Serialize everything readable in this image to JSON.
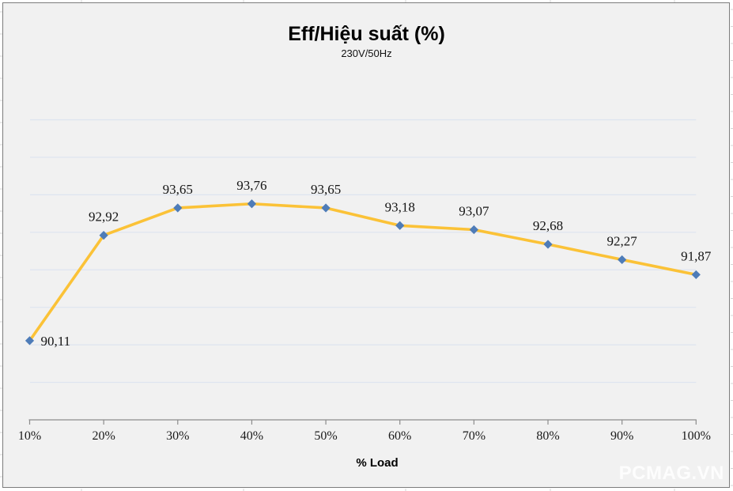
{
  "watermark_text": "PCMAG.VN",
  "chart_data": {
    "type": "line",
    "title": "Eff/Hiệu suất (%)",
    "subtitle": "230V/50Hz",
    "xlabel": "% Load",
    "ylabel": "",
    "categories": [
      "10%",
      "20%",
      "30%",
      "40%",
      "50%",
      "60%",
      "70%",
      "80%",
      "90%",
      "100%"
    ],
    "series": [
      {
        "name": "Eff/Hiệu suất",
        "values": [
          90.11,
          92.92,
          93.65,
          93.76,
          93.65,
          93.18,
          93.07,
          92.68,
          92.27,
          91.87
        ],
        "value_labels": [
          "90,11",
          "92,92",
          "93,65",
          "93,76",
          "93,65",
          "93,18",
          "93,07",
          "92,68",
          "92,27",
          "91,87"
        ]
      }
    ],
    "ylim": [
      88,
      96
    ],
    "y_major_unit": 1,
    "grid": "horizontal-on",
    "y_axis_labels_visible": false,
    "legend": "none",
    "colors": {
      "line": "#fbc237",
      "marker": "#4e7cb8",
      "gridline": "#dde4f0",
      "axis": "#8c8c8c",
      "data_label": "#141414",
      "tick_label": "#1a1a1a",
      "plot_background": "#f1f1f1",
      "frame_border": "#7d7d7d",
      "watermark": "#fdfdfd"
    }
  }
}
